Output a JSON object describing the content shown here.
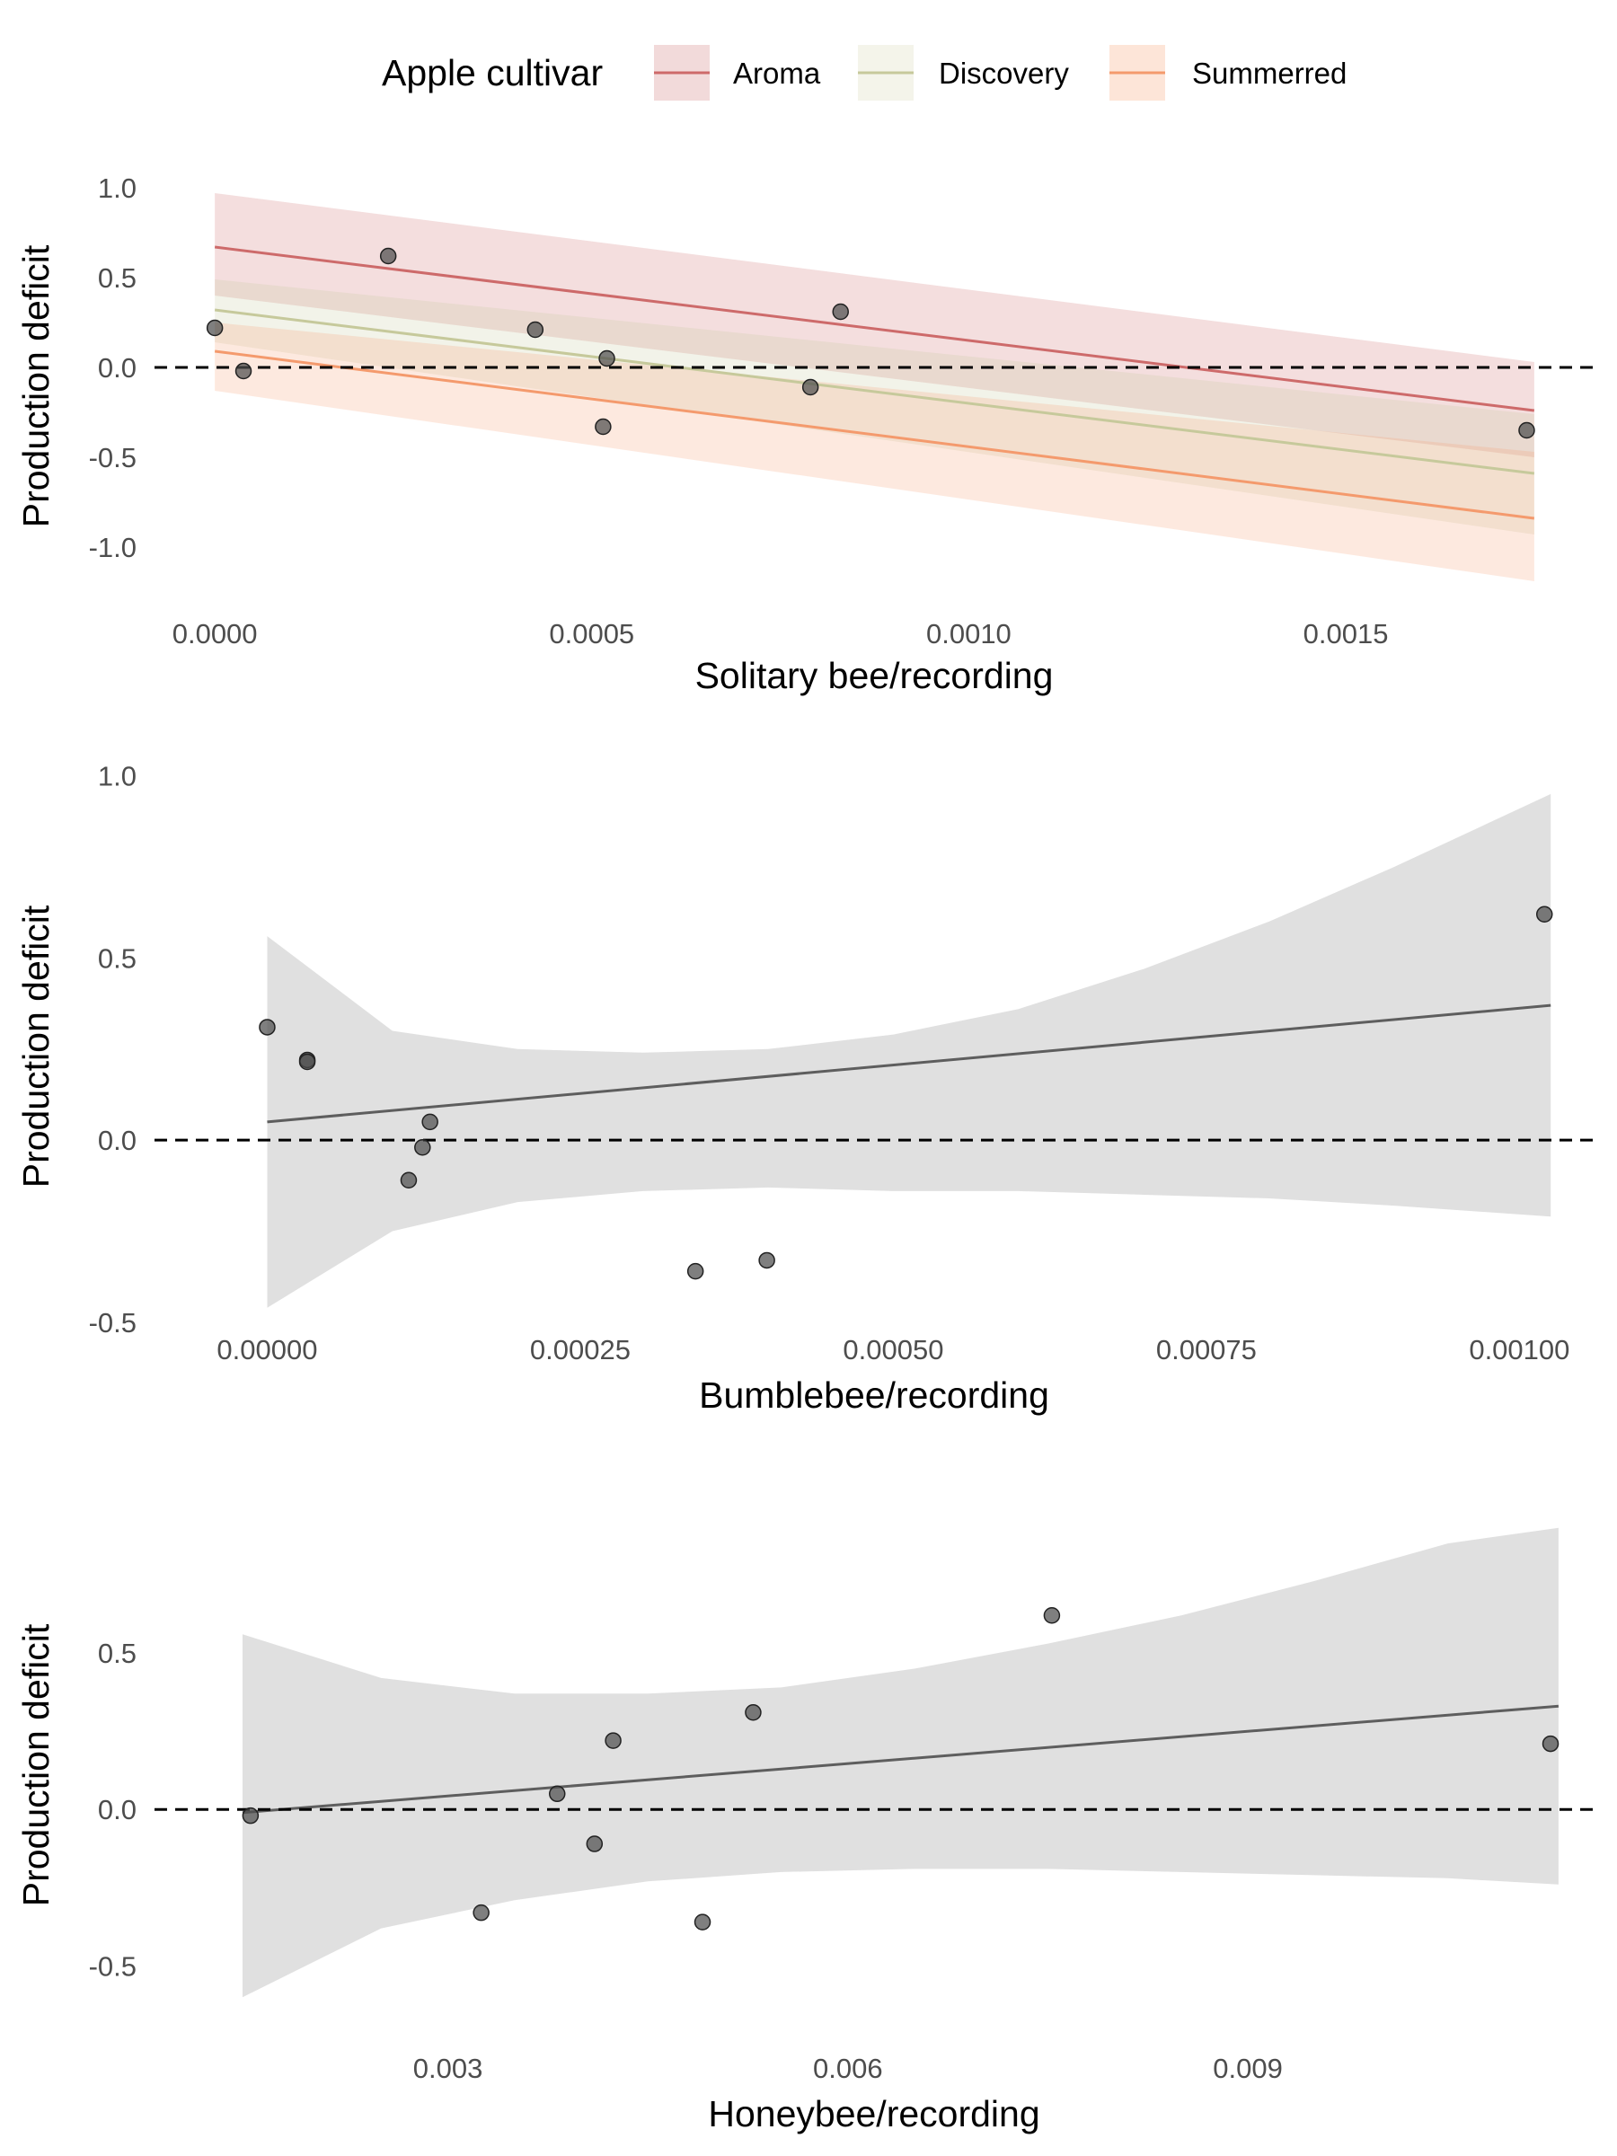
{
  "legend": {
    "title": "Apple cultivar",
    "items": [
      {
        "label": "Aroma",
        "line_color": "#cd6a6a",
        "fill_color": "#f2dada"
      },
      {
        "label": "Discovery",
        "line_color": "#c6c99b",
        "fill_color": "#f4f4ea"
      },
      {
        "label": "Summerred",
        "line_color": "#f49a6d",
        "fill_color": "#fde5d8"
      }
    ]
  },
  "chart_data": [
    {
      "type": "scatter",
      "xlabel": "Solitary bee/recording",
      "ylabel": "Production deficit",
      "xlim": [
        -8e-05,
        0.00183
      ],
      "ylim": [
        -1.28,
        1.12
      ],
      "xticks": [
        0,
        0.0005,
        0.001,
        0.0015
      ],
      "xtick_labels": [
        "0.0000",
        "0.0005",
        "0.0010",
        "0.0015"
      ],
      "yticks": [
        1.0,
        0.5,
        0.0,
        -0.5,
        -1.0
      ],
      "ytick_labels": [
        "1.0",
        "0.5",
        "0.0",
        "-0.5",
        "-1.0"
      ],
      "reference_line_y": 0,
      "points": [
        {
          "x": 0.0,
          "y": 0.22
        },
        {
          "x": 3.8e-05,
          "y": -0.02
        },
        {
          "x": 0.00023,
          "y": 0.62
        },
        {
          "x": 0.000425,
          "y": 0.21
        },
        {
          "x": 0.000515,
          "y": -0.33
        },
        {
          "x": 0.00052,
          "y": 0.05
        },
        {
          "x": 0.00079,
          "y": -0.11
        },
        {
          "x": 0.00083,
          "y": 0.31
        },
        {
          "x": 0.00174,
          "y": -0.35
        }
      ],
      "series": [
        {
          "name": "Aroma",
          "line": [
            [
              0,
              0.67
            ],
            [
              0.00175,
              -0.24
            ]
          ],
          "band_upper": [
            [
              0,
              0.97
            ],
            [
              0.00175,
              0.03
            ]
          ],
          "band_lower": [
            [
              0,
              0.4
            ],
            [
              0.00175,
              -0.5
            ]
          ]
        },
        {
          "name": "Discovery",
          "line": [
            [
              0,
              0.32
            ],
            [
              0.00175,
              -0.59
            ]
          ],
          "band_upper": [
            [
              0,
              0.49
            ],
            [
              0.00175,
              -0.26
            ]
          ],
          "band_lower": [
            [
              0,
              0.14
            ],
            [
              0.00175,
              -0.93
            ]
          ]
        },
        {
          "name": "Summerred",
          "line": [
            [
              0,
              0.09
            ],
            [
              0.00175,
              -0.84
            ]
          ],
          "band_upper": [
            [
              0,
              0.25
            ],
            [
              0.00175,
              -0.47
            ]
          ],
          "band_lower": [
            [
              0,
              -0.13
            ],
            [
              0.00175,
              -1.19
            ]
          ]
        }
      ]
    },
    {
      "type": "scatter",
      "xlabel": "Bumblebee/recording",
      "ylabel": "Production deficit",
      "xlim": [
        -9e-05,
        0.00106
      ],
      "ylim": [
        -0.52,
        1.12
      ],
      "xticks": [
        0,
        0.00025,
        0.0005,
        0.00075,
        0.001
      ],
      "xtick_labels": [
        "0.00000",
        "0.00025",
        "0.00050",
        "0.00075",
        "0.00100"
      ],
      "yticks": [
        1.0,
        0.5,
        0.0,
        -0.5
      ],
      "ytick_labels": [
        "1.0",
        "0.5",
        "0.0",
        "-0.5"
      ],
      "reference_line_y": 0,
      "points": [
        {
          "x": 0.0,
          "y": 0.31
        },
        {
          "x": 3.2e-05,
          "y": 0.22
        },
        {
          "x": 3.2e-05,
          "y": 0.215
        },
        {
          "x": 0.000113,
          "y": -0.11
        },
        {
          "x": 0.000124,
          "y": -0.02
        },
        {
          "x": 0.00013,
          "y": 0.05
        },
        {
          "x": 0.000342,
          "y": -0.36
        },
        {
          "x": 0.000399,
          "y": -0.33
        },
        {
          "x": 0.00102,
          "y": 0.62
        }
      ],
      "fit": {
        "line": [
          [
            0,
            0.05
          ],
          [
            0.001025,
            0.37
          ]
        ],
        "band_upper": [
          [
            0,
            0.56
          ],
          [
            0.0001,
            0.3
          ],
          [
            0.0002,
            0.25
          ],
          [
            0.0003,
            0.24
          ],
          [
            0.0004,
            0.25
          ],
          [
            0.0005,
            0.29
          ],
          [
            0.0006,
            0.36
          ],
          [
            0.0007,
            0.47
          ],
          [
            0.0008,
            0.6
          ],
          [
            0.0009,
            0.75
          ],
          [
            0.001025,
            0.95
          ]
        ],
        "band_lower": [
          [
            0,
            -0.46
          ],
          [
            0.0001,
            -0.25
          ],
          [
            0.0002,
            -0.17
          ],
          [
            0.0003,
            -0.14
          ],
          [
            0.0004,
            -0.13
          ],
          [
            0.0005,
            -0.14
          ],
          [
            0.0006,
            -0.14
          ],
          [
            0.0007,
            -0.15
          ],
          [
            0.0008,
            -0.16
          ],
          [
            0.0009,
            -0.18
          ],
          [
            0.001025,
            -0.21
          ]
        ]
      }
    },
    {
      "type": "scatter",
      "xlabel": "Honeybee/recording",
      "ylabel": "Production deficit",
      "xlim": [
        0.0008,
        0.0116
      ],
      "ylim": [
        -0.72,
        1.06
      ],
      "xticks": [
        0.003,
        0.006,
        0.009
      ],
      "xtick_labels": [
        "0.003",
        "0.006",
        "0.009"
      ],
      "yticks": [
        0.5,
        0.0,
        -0.5
      ],
      "ytick_labels": [
        "0.5",
        "0.0",
        "-0.5"
      ],
      "reference_line_y": 0,
      "points": [
        {
          "x": 0.00152,
          "y": -0.02
        },
        {
          "x": 0.00325,
          "y": -0.33
        },
        {
          "x": 0.00382,
          "y": 0.05
        },
        {
          "x": 0.0041,
          "y": -0.11
        },
        {
          "x": 0.00424,
          "y": 0.22
        },
        {
          "x": 0.00491,
          "y": -0.36
        },
        {
          "x": 0.00529,
          "y": 0.31
        },
        {
          "x": 0.00753,
          "y": 0.62
        },
        {
          "x": 0.01127,
          "y": 0.21
        }
      ],
      "fit": {
        "line": [
          [
            0.00146,
            -0.01
          ],
          [
            0.01133,
            0.33
          ]
        ],
        "band_upper": [
          [
            0.00146,
            0.56
          ],
          [
            0.0025,
            0.42
          ],
          [
            0.0035,
            0.37
          ],
          [
            0.0045,
            0.37
          ],
          [
            0.0055,
            0.39
          ],
          [
            0.0065,
            0.45
          ],
          [
            0.0075,
            0.53
          ],
          [
            0.0085,
            0.62
          ],
          [
            0.0095,
            0.73
          ],
          [
            0.0105,
            0.85
          ],
          [
            0.01133,
            0.9
          ]
        ],
        "band_lower": [
          [
            0.00146,
            -0.6
          ],
          [
            0.0025,
            -0.38
          ],
          [
            0.0035,
            -0.29
          ],
          [
            0.0045,
            -0.23
          ],
          [
            0.0055,
            -0.2
          ],
          [
            0.0065,
            -0.19
          ],
          [
            0.0075,
            -0.19
          ],
          [
            0.0085,
            -0.2
          ],
          [
            0.0095,
            -0.21
          ],
          [
            0.0105,
            -0.22
          ],
          [
            0.01133,
            -0.24
          ]
        ]
      }
    }
  ]
}
